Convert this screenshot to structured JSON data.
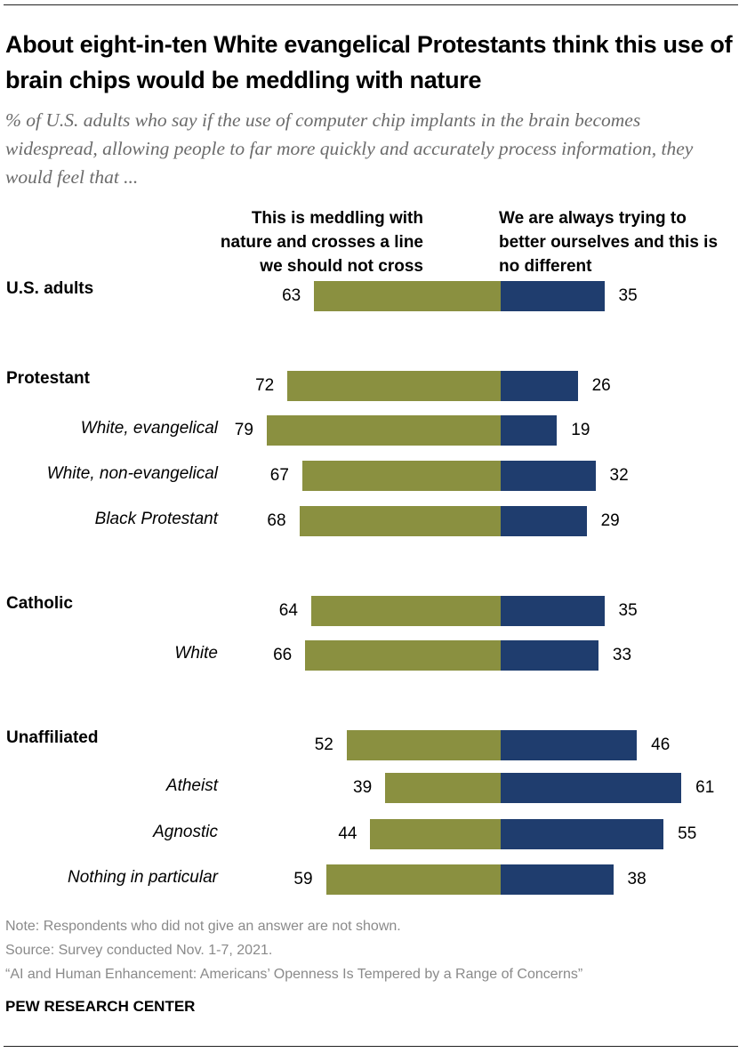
{
  "title": "About eight-in-ten White evangelical Protestants think this use of brain chips would be meddling with nature",
  "subtitle": "% of U.S. adults who say if the use of computer chip implants in the brain becomes widespread, allowing people to far more quickly and accurately process information, they would feel that ...",
  "chart_data": {
    "type": "bar",
    "orientation": "horizontal-diverging",
    "categories": [
      "U.S. adults",
      "Protestant",
      "White, evangelical",
      "White, non-evangelical",
      "Black Protestant",
      "Catholic",
      "White",
      "Unaffiliated",
      "Atheist",
      "Agnostic",
      "Nothing in particular"
    ],
    "category_level": [
      "main",
      "main",
      "sub",
      "sub",
      "sub",
      "main",
      "sub",
      "main",
      "sub",
      "sub",
      "sub"
    ],
    "series": [
      {
        "name": "This is meddling with nature and crosses a line we should not cross",
        "color": "#8a9040",
        "values": [
          63,
          72,
          79,
          67,
          68,
          64,
          66,
          52,
          39,
          44,
          59
        ]
      },
      {
        "name": "We are always trying to better ourselves and this is no different",
        "color": "#1f3d6e",
        "values": [
          35,
          26,
          19,
          32,
          29,
          35,
          33,
          46,
          61,
          55,
          38
        ]
      }
    ],
    "xlim": [
      0,
      100
    ]
  },
  "legend": {
    "left": "This is meddling with nature and crosses a line we should not cross",
    "right": "We are always trying to better ourselves and this is no different"
  },
  "footer": {
    "note": "Note: Respondents who did not give an answer are not shown.",
    "source": "Source: Survey conducted Nov. 1-7, 2021.",
    "report": "“AI and Human Enhancement: Americans’ Openness Is Tempered by a Range of Concerns”",
    "brand": "PEW RESEARCH CENTER"
  }
}
